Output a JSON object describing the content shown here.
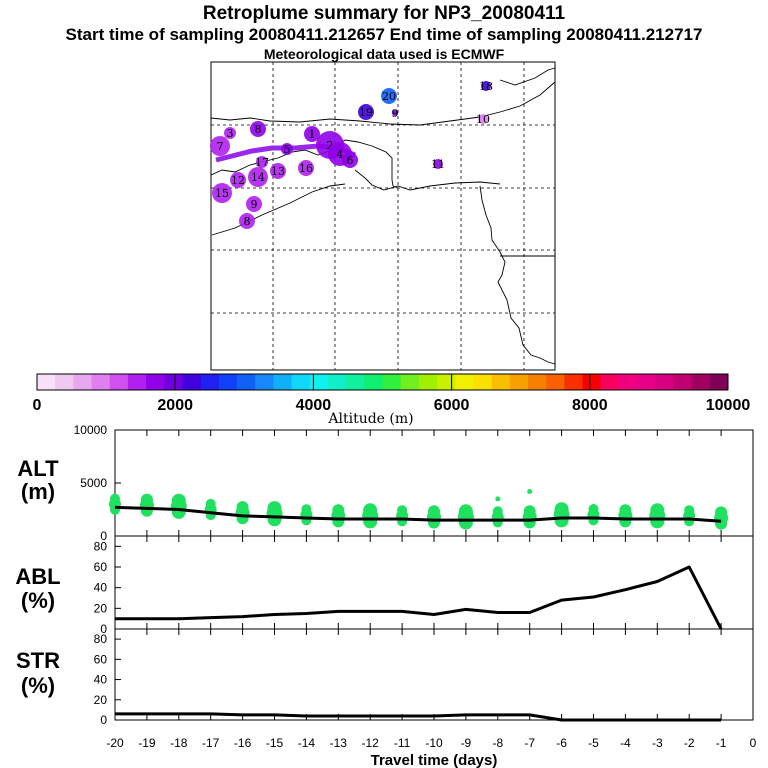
{
  "header": {
    "title": "Retroplume summary for NP3_20080411",
    "start_line": "Start time of sampling 20080411.212657     End time of sampling 20080411.212717",
    "met_line": "Meteorological data used is ECMWF"
  },
  "colorbar": {
    "title": "Altitude (m)",
    "tick_labels": [
      "0",
      "2000",
      "4000",
      "6000",
      "8000",
      "10000"
    ],
    "colors": [
      "#f8e0f8",
      "#f0c8f0",
      "#e8a8f0",
      "#e080f0",
      "#d050f0",
      "#b020f0",
      "#9000e8",
      "#7000e0",
      "#4000e0",
      "#2020f0",
      "#1040f8",
      "#1060f8",
      "#1888f8",
      "#10b0f8",
      "#10d8f8",
      "#10f0f0",
      "#10f0c8",
      "#10f0a0",
      "#10f070",
      "#30f040",
      "#70f020",
      "#a0f000",
      "#c8f000",
      "#f0f000",
      "#f8e000",
      "#f8c000",
      "#f8a000",
      "#f88000",
      "#f86000",
      "#f83000",
      "#f80000",
      "#f80060",
      "#f00080",
      "#e80088",
      "#d80080",
      "#c00070",
      "#a00060",
      "#800058"
    ]
  },
  "map": {
    "clusters": [
      {
        "label": "20",
        "alt": 2900
      },
      {
        "label": "18",
        "alt": 2300
      },
      {
        "label": "9",
        "alt": 1900
      },
      {
        "label": "19",
        "alt": 2200
      },
      {
        "label": "10",
        "alt": 1000
      },
      {
        "label": "8",
        "alt": 1700
      },
      {
        "label": "3",
        "alt": 1500
      },
      {
        "label": "1",
        "alt": 1600
      },
      {
        "label": "7",
        "alt": 1500
      },
      {
        "label": "5",
        "alt": 1700
      },
      {
        "label": "2",
        "alt": 1600
      },
      {
        "label": "4",
        "alt": 1600
      },
      {
        "label": "6",
        "alt": 1600
      },
      {
        "label": "17",
        "alt": 1500
      },
      {
        "label": "11",
        "alt": 1600
      },
      {
        "label": "13",
        "alt": 1500
      },
      {
        "label": "16",
        "alt": 1500
      },
      {
        "label": "12",
        "alt": 1500
      },
      {
        "label": "15",
        "alt": 1400
      },
      {
        "label": "14",
        "alt": 1400
      },
      {
        "label": "9",
        "alt": 1500
      },
      {
        "label": "8",
        "alt": 1500
      }
    ]
  },
  "chart_data": [
    {
      "type": "line",
      "name": "ALT",
      "ylabel": "ALT\n(m)",
      "ylim": [
        0,
        10000
      ],
      "yticks": [
        0,
        5000,
        10000
      ],
      "x": [
        -20,
        -19,
        -18,
        -17,
        -16,
        -15,
        -14,
        -13,
        -12,
        -11,
        -10,
        -9,
        -8,
        -7,
        -6,
        -5,
        -4,
        -3,
        -2,
        -1
      ],
      "values": [
        2700,
        2600,
        2500,
        2200,
        1900,
        1800,
        1700,
        1600,
        1600,
        1600,
        1500,
        1500,
        1500,
        1500,
        1700,
        1700,
        1600,
        1600,
        1600,
        1400
      ],
      "scatter_alt_values": [
        3500,
        3700,
        3200,
        3000,
        2800,
        2400,
        2000,
        1800,
        2100,
        1900,
        1800,
        2000,
        3500,
        4200,
        2000,
        2800,
        1800,
        2600,
        1400,
        1400
      ]
    },
    {
      "type": "line",
      "name": "ABL",
      "ylabel": "ABL\n(%)",
      "ylim": [
        0,
        90
      ],
      "yticks": [
        0,
        20,
        40,
        60,
        80
      ],
      "x": [
        -20,
        -19,
        -18,
        -17,
        -16,
        -15,
        -14,
        -13,
        -12,
        -11,
        -10,
        -9,
        -8,
        -7,
        -6,
        -5,
        -4,
        -3,
        -2,
        -1
      ],
      "values": [
        10,
        10,
        10,
        11,
        12,
        14,
        15,
        17,
        17,
        17,
        14,
        19,
        16,
        16,
        28,
        31,
        38,
        46,
        60,
        0
      ]
    },
    {
      "type": "line",
      "name": "STR",
      "ylabel": "STR\n(%)",
      "xlabel": "Travel time (days)",
      "ylim": [
        0,
        90
      ],
      "yticks": [
        0,
        20,
        40,
        60,
        80
      ],
      "x": [
        -20,
        -19,
        -18,
        -17,
        -16,
        -15,
        -14,
        -13,
        -12,
        -11,
        -10,
        -9,
        -8,
        -7,
        -6,
        -5,
        -4,
        -3,
        -2,
        -1
      ],
      "values": [
        6,
        6,
        6,
        6,
        5,
        5,
        4,
        4,
        4,
        4,
        4,
        5,
        5,
        5,
        0,
        0,
        0,
        0,
        0,
        0
      ],
      "xticks": [
        "-20",
        "-19",
        "-18",
        "-17",
        "-16",
        "-15",
        "-14",
        "-13",
        "-12",
        "-11",
        "-10",
        "-9",
        "-8",
        "-7",
        "-6",
        "-5",
        "-4",
        "-3",
        "-2",
        "-1",
        "0"
      ]
    }
  ]
}
